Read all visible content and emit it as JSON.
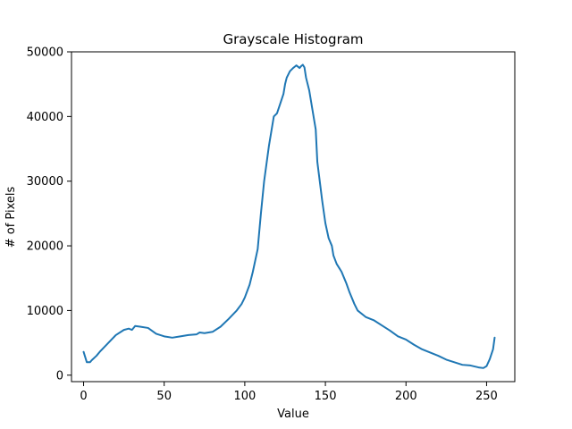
{
  "chart_data": {
    "type": "line",
    "title": "Grayscale Histogram",
    "xlabel": "Value",
    "ylabel": "# of Pixels",
    "xlim": [
      -7.5,
      267.5
    ],
    "ylim": [
      -1000,
      50000
    ],
    "xticks": [
      0,
      50,
      100,
      150,
      200,
      250
    ],
    "yticks": [
      0,
      10000,
      20000,
      30000,
      40000,
      50000
    ],
    "grid": false,
    "legend": "none",
    "series_color": "#1f77b4",
    "x": [
      0,
      2,
      4,
      5,
      8,
      10,
      15,
      20,
      25,
      28,
      30,
      32,
      35,
      40,
      45,
      50,
      55,
      60,
      65,
      70,
      72,
      75,
      80,
      85,
      90,
      95,
      98,
      100,
      103,
      105,
      108,
      110,
      112,
      115,
      118,
      120,
      122,
      124,
      125,
      126,
      128,
      130,
      131,
      132,
      134,
      135,
      136,
      137,
      138,
      140,
      142,
      144,
      145,
      146,
      148,
      150,
      152,
      154,
      155,
      157,
      160,
      162,
      163,
      165,
      168,
      170,
      175,
      180,
      185,
      190,
      195,
      200,
      205,
      210,
      215,
      220,
      225,
      230,
      235,
      240,
      245,
      248,
      250,
      252,
      254,
      255
    ],
    "y": [
      3600,
      2000,
      2000,
      2300,
      3000,
      3600,
      4900,
      6200,
      7000,
      7200,
      7000,
      7600,
      7500,
      7300,
      6400,
      6000,
      5800,
      6000,
      6200,
      6300,
      6600,
      6500,
      6700,
      7500,
      8700,
      10000,
      11000,
      12000,
      14000,
      16000,
      19500,
      25000,
      30000,
      35500,
      40000,
      40500,
      42000,
      43500,
      45000,
      46000,
      47000,
      47500,
      47700,
      47900,
      47500,
      47800,
      48000,
      47600,
      46000,
      44000,
      41000,
      38000,
      33000,
      31000,
      27000,
      23500,
      21200,
      20000,
      18500,
      17200,
      16000,
      14800,
      14200,
      12800,
      11000,
      10000,
      9000,
      8500,
      7700,
      6900,
      6000,
      5500,
      4700,
      4000,
      3500,
      3000,
      2400,
      2000,
      1600,
      1500,
      1200,
      1100,
      1400,
      2500,
      4000,
      5800
    ]
  }
}
